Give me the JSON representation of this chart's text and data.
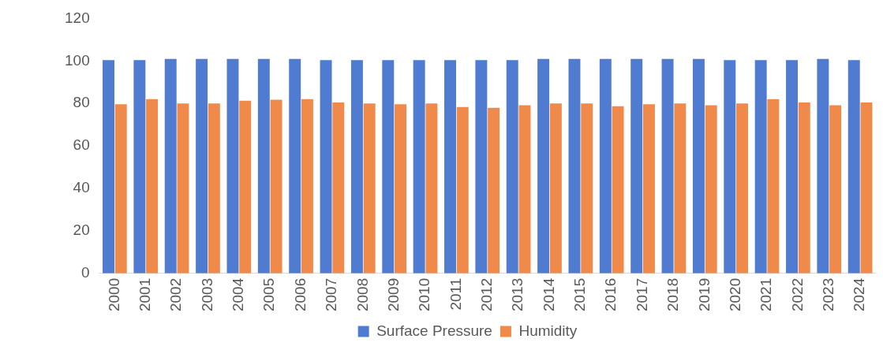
{
  "chart_data": {
    "type": "bar",
    "categories": [
      "2000",
      "2001",
      "2002",
      "2003",
      "2004",
      "2005",
      "2006",
      "2007",
      "2008",
      "2009",
      "2010",
      "2011",
      "2012",
      "2013",
      "2014",
      "2015",
      "2016",
      "2017",
      "2018",
      "2019",
      "2020",
      "2021",
      "2022",
      "2023",
      "2024"
    ],
    "series": [
      {
        "name": "Surface Pressure",
        "color": "#4f7cd0",
        "values": [
          100.4,
          100.4,
          100.9,
          100.9,
          100.9,
          100.9,
          100.9,
          100.4,
          100.4,
          100.4,
          100.4,
          100.4,
          100.4,
          100.4,
          100.9,
          100.9,
          100.9,
          100.9,
          100.9,
          100.9,
          100.4,
          100.4,
          100.4,
          100.9,
          100.4
        ]
      },
      {
        "name": "Humidity",
        "color": "#f08a4b",
        "values": [
          79.6,
          82,
          80,
          80,
          81.3,
          81.7,
          82,
          80.4,
          80,
          79.6,
          80,
          78.3,
          77.9,
          79.1,
          80,
          80,
          78.7,
          79.6,
          80,
          79.1,
          80,
          82,
          80.4,
          79.1,
          80.4
        ]
      }
    ],
    "ylim": [
      0,
      120
    ],
    "yticks": [
      0,
      20,
      40,
      60,
      80,
      100,
      120
    ],
    "grid": false,
    "legend": "bottom"
  }
}
